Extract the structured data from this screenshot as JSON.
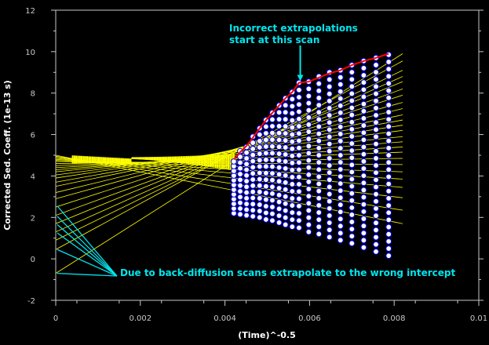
{
  "chart_data": {
    "type": "scatter",
    "title": "",
    "xlabel": "(Time)^-0.5",
    "ylabel": "Corrected Sed. Coeff. (1e-13 s)",
    "xlim": [
      0,
      0.01
    ],
    "ylim": [
      -2,
      12
    ],
    "x_ticks": [
      "0",
      "0.002",
      "0.004",
      "0.006",
      "0.008",
      "0.01"
    ],
    "y_ticks": [
      "-2",
      "0",
      "2",
      "4",
      "6",
      "8",
      "10",
      "12"
    ],
    "grid": false,
    "colors": {
      "background": "#000000",
      "plot_background": "#000000",
      "frame": "#c8c8c8",
      "fit_lines": "#ffff00",
      "early_points": "#ffff00",
      "points": "#ffffff",
      "point_outline": "#0000ff",
      "upper_trace": "#ff0000",
      "annotation": "#00e5ee"
    },
    "scans": {
      "x": [
        0.00421,
        0.00436,
        0.00451,
        0.00466,
        0.00482,
        0.00497,
        0.00512,
        0.00528,
        0.00543,
        0.00559,
        0.00575,
        0.00598,
        0.00622,
        0.00647,
        0.00673,
        0.007,
        0.00728,
        0.00757,
        0.00787
      ],
      "boundary_low": [
        2.2,
        2.15,
        2.1,
        2.05,
        2.0,
        1.9,
        1.85,
        1.75,
        1.65,
        1.55,
        1.5,
        1.3,
        1.2,
        1.05,
        0.9,
        0.75,
        0.55,
        0.35,
        0.15
      ],
      "boundary_high": [
        4.7,
        5.2,
        5.4,
        5.9,
        6.3,
        6.7,
        7.05,
        7.4,
        7.75,
        8.05,
        8.5,
        8.55,
        8.8,
        9.0,
        9.1,
        9.35,
        9.55,
        9.7,
        9.85
      ],
      "points_per_scan": [
        12,
        12,
        13,
        14,
        15,
        16,
        17,
        18,
        19,
        20,
        21,
        22,
        23,
        24,
        25,
        26,
        27,
        28,
        29
      ]
    },
    "upper_trace": {
      "x": [
        0.00421,
        0.00436,
        0.00451,
        0.00466,
        0.00482,
        0.00497,
        0.00512,
        0.00528,
        0.00543,
        0.00559,
        0.00575,
        0.00598,
        0.00622,
        0.00647,
        0.00673,
        0.007,
        0.00728,
        0.00757,
        0.00787
      ],
      "y": [
        4.8,
        5.15,
        5.45,
        5.85,
        6.3,
        6.7,
        7.05,
        7.4,
        7.75,
        8.05,
        8.5,
        8.55,
        8.75,
        8.95,
        9.1,
        9.35,
        9.55,
        9.7,
        9.9
      ]
    },
    "extrapolation_lines": {
      "x_range": [
        0,
        0.0082
      ],
      "intercepts": [
        -0.7,
        0.45,
        0.9,
        1.3,
        1.7,
        2.1,
        2.5,
        2.9,
        3.2,
        3.5,
        3.7,
        3.9,
        4.05,
        4.2,
        4.3,
        4.4,
        4.5,
        4.6,
        4.7,
        4.75,
        4.8,
        4.85,
        4.9,
        4.95,
        5.0
      ],
      "end_values": [
        9.9,
        9.55,
        9.1,
        8.8,
        8.55,
        8.2,
        7.9,
        7.55,
        7.25,
        6.95,
        6.7,
        6.45,
        6.2,
        5.9,
        5.65,
        5.4,
        5.15,
        4.85,
        4.55,
        4.2,
        3.85,
        3.45,
        2.95,
        2.35,
        1.7
      ]
    },
    "annotations": [
      {
        "text_lines": [
          "Incorrect extrapolations",
          "start at this scan"
        ],
        "arrow_to": [
          0.00578,
          8.5
        ]
      },
      {
        "text": "Due to back-diffusion scans extrapolate to the wrong intercept",
        "arrows_to": [
          [
            0,
            2.55
          ],
          [
            0,
            2.05
          ],
          [
            0,
            1.65
          ],
          [
            0,
            1.25
          ],
          [
            0,
            0.45
          ],
          [
            0,
            -0.7
          ]
        ]
      }
    ]
  }
}
